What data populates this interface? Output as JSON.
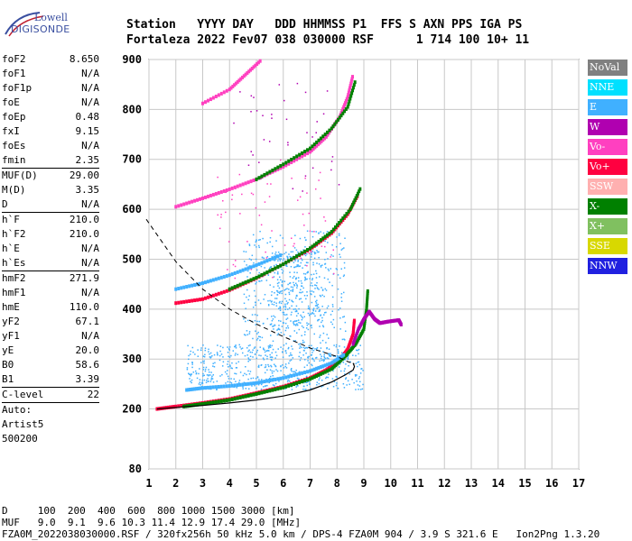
{
  "logo": {
    "line1": "Lowell",
    "line2": "DIGISONDE"
  },
  "header": {
    "row1": "Station   YYYY DAY   DDD HHMMSS P1  FFS S AXN PPS IGA PS",
    "row2": "Fortaleza 2022 Fev07 038 030000 RSF      1 714 100 10+ 11"
  },
  "params": [
    {
      "label": "foF2",
      "value": "8.650"
    },
    {
      "label": "foF1",
      "value": "N/A"
    },
    {
      "label": "foF1p",
      "value": "N/A"
    },
    {
      "label": "foE",
      "value": "N/A"
    },
    {
      "label": "foEp",
      "value": "0.48"
    },
    {
      "label": "fxI",
      "value": "9.15"
    },
    {
      "label": "foEs",
      "value": "N/A"
    },
    {
      "label": "fmin",
      "value": "2.35"
    },
    {
      "sep": true
    },
    {
      "label": "MUF(D)",
      "value": "29.00"
    },
    {
      "label": "M(D)",
      "value": "3.35"
    },
    {
      "label": "D",
      "value": "N/A"
    },
    {
      "sep": true
    },
    {
      "label": "h`F",
      "value": "210.0"
    },
    {
      "label": "h`F2",
      "value": "210.0"
    },
    {
      "label": "h`E",
      "value": "N/A"
    },
    {
      "label": "h`Es",
      "value": "N/A"
    },
    {
      "sep": true
    },
    {
      "label": "hmF2",
      "value": "271.9"
    },
    {
      "label": "hmF1",
      "value": "N/A"
    },
    {
      "label": "hmE",
      "value": "110.0"
    },
    {
      "label": "yF2",
      "value": "67.1"
    },
    {
      "label": "yF1",
      "value": "N/A"
    },
    {
      "label": "yE",
      "value": "20.0"
    },
    {
      "label": "B0",
      "value": "58.6"
    },
    {
      "label": "B1",
      "value": "3.39"
    },
    {
      "sep": true
    },
    {
      "label": "C-level",
      "value": "22"
    },
    {
      "sep": true
    },
    {
      "label": "Auto:",
      "value": ""
    },
    {
      "label": "Artist5",
      "value": ""
    },
    {
      "label": "500200",
      "value": ""
    }
  ],
  "legend": [
    {
      "label": "NoVal",
      "color": "#808080"
    },
    {
      "label": "NNE",
      "color": "#00e0ff"
    },
    {
      "label": "E",
      "color": "#40b0ff"
    },
    {
      "label": "W",
      "color": "#b000b0"
    },
    {
      "label": "Vo-",
      "color": "#ff40c0"
    },
    {
      "label": "Vo+",
      "color": "#ff0040"
    },
    {
      "label": "SSW",
      "color": "#ffb0b0"
    },
    {
      "label": "X-",
      "color": "#008000"
    },
    {
      "label": "X+",
      "color": "#80c060"
    },
    {
      "label": "SSE",
      "color": "#d8d800"
    },
    {
      "label": "NNW",
      "color": "#2020e0"
    }
  ],
  "footer": {
    "line1": "D     100  200  400  600  800 1000 1500 3000 [km]",
    "line2": "MUF   9.0  9.1  9.6 10.3 11.4 12.9 17.4 29.0 [MHz]",
    "line3": "FZA0M_2022038030000.RSF / 320fx256h 50 kHz 5.0 km / DPS-4 FZA0M 904 / 3.9 S 321.6 E   Ion2Png 1.3.20"
  },
  "chart_data": {
    "type": "scatter",
    "x_ticks": [
      "1",
      "2",
      "3",
      "4",
      "5",
      "6",
      "7",
      "8",
      "9",
      "10",
      "11",
      "12",
      "13",
      "14",
      "15",
      "16",
      "17"
    ],
    "y_ticks": [
      "80",
      "200",
      "300",
      "400",
      "500",
      "600",
      "700",
      "800",
      "900"
    ],
    "xlim": [
      1,
      17
    ],
    "ylim": [
      80,
      900
    ],
    "grid": true,
    "legend_position": "right",
    "colors": {
      "vo_minus": "#ff40c0",
      "vo_plus": "#ff0040",
      "x_minus": "#008000",
      "x_plus": "#80c060",
      "e": "#40b0ff",
      "w": "#b000b0",
      "nnw": "#2020e0",
      "sse": "#d8d800",
      "ssw": "#ffb0b0"
    },
    "traces": [
      {
        "id": "o1",
        "color": "#ff0040",
        "points": [
          [
            1.3,
            200
          ],
          [
            2,
            205
          ],
          [
            3,
            212
          ],
          [
            4,
            220
          ],
          [
            5,
            232
          ],
          [
            6,
            245
          ],
          [
            7,
            262
          ],
          [
            7.6,
            278
          ],
          [
            8.1,
            298
          ],
          [
            8.4,
            320
          ],
          [
            8.6,
            350
          ],
          [
            8.65,
            380
          ]
        ]
      },
      {
        "id": "x1",
        "color": "#008000",
        "points": [
          [
            2.3,
            205
          ],
          [
            3,
            210
          ],
          [
            4,
            218
          ],
          [
            5,
            230
          ],
          [
            6,
            243
          ],
          [
            7,
            260
          ],
          [
            7.8,
            280
          ],
          [
            8.3,
            305
          ],
          [
            8.7,
            330
          ],
          [
            9.0,
            360
          ],
          [
            9.1,
            400
          ],
          [
            9.15,
            440
          ]
        ]
      },
      {
        "id": "o2",
        "color": "#ff0040",
        "points": [
          [
            2,
            412
          ],
          [
            3,
            420
          ],
          [
            4,
            438
          ],
          [
            5,
            462
          ],
          [
            6,
            490
          ],
          [
            7,
            520
          ],
          [
            7.8,
            552
          ],
          [
            8.4,
            590
          ],
          [
            8.8,
            630
          ]
        ]
      },
      {
        "id": "x2",
        "color": "#008000",
        "points": [
          [
            4,
            440
          ],
          [
            5,
            463
          ],
          [
            6,
            490
          ],
          [
            7,
            522
          ],
          [
            7.8,
            555
          ],
          [
            8.5,
            600
          ],
          [
            8.9,
            645
          ]
        ]
      },
      {
        "id": "o3",
        "color": "#ff40c0",
        "points": [
          [
            2,
            605
          ],
          [
            3,
            622
          ],
          [
            4,
            640
          ],
          [
            5,
            660
          ],
          [
            6,
            685
          ],
          [
            7,
            715
          ],
          [
            7.6,
            745
          ],
          [
            8.1,
            785
          ],
          [
            8.4,
            825
          ],
          [
            8.6,
            870
          ]
        ]
      },
      {
        "id": "x3",
        "color": "#008000",
        "points": [
          [
            5,
            660
          ],
          [
            6,
            690
          ],
          [
            7,
            722
          ],
          [
            7.8,
            762
          ],
          [
            8.4,
            805
          ],
          [
            8.7,
            860
          ]
        ]
      },
      {
        "id": "o4",
        "color": "#ff40c0",
        "points": [
          [
            3,
            812
          ],
          [
            4,
            840
          ],
          [
            4.6,
            870
          ],
          [
            5.2,
            900
          ]
        ]
      },
      {
        "id": "e_trace",
        "color": "#40b0ff",
        "points": [
          [
            2.4,
            238
          ],
          [
            3,
            242
          ],
          [
            4,
            246
          ],
          [
            5,
            252
          ],
          [
            6,
            262
          ],
          [
            7,
            276
          ],
          [
            7.8,
            292
          ],
          [
            8.3,
            310
          ]
        ]
      },
      {
        "id": "e_trace2",
        "color": "#40b0ff",
        "points": [
          [
            2,
            440
          ],
          [
            3,
            452
          ],
          [
            4,
            468
          ],
          [
            5,
            488
          ],
          [
            6,
            510
          ]
        ]
      },
      {
        "id": "cusp",
        "color": "#b000b0",
        "points": [
          [
            8.6,
            330
          ],
          [
            8.8,
            360
          ],
          [
            9.0,
            380
          ],
          [
            9.2,
            395
          ],
          [
            9.4,
            380
          ],
          [
            9.6,
            372
          ],
          [
            9.9,
            375
          ],
          [
            10.3,
            378
          ],
          [
            10.4,
            368
          ]
        ]
      }
    ],
    "profile_solid": [
      [
        1.3,
        200
      ],
      [
        2,
        203
      ],
      [
        3,
        207
      ],
      [
        4,
        212
      ],
      [
        5,
        218
      ],
      [
        6,
        226
      ],
      [
        7,
        238
      ],
      [
        7.8,
        254
      ],
      [
        8.3,
        268
      ],
      [
        8.6,
        278
      ],
      [
        8.65,
        285
      ],
      [
        8.6,
        292
      ]
    ],
    "profile_dashed": [
      [
        0.9,
        580
      ],
      [
        2,
        495
      ],
      [
        3,
        440
      ],
      [
        4,
        400
      ],
      [
        5,
        370
      ],
      [
        6,
        345
      ],
      [
        7,
        322
      ],
      [
        8,
        305
      ],
      [
        8.4,
        295
      ],
      [
        8.65,
        290
      ]
    ]
  }
}
